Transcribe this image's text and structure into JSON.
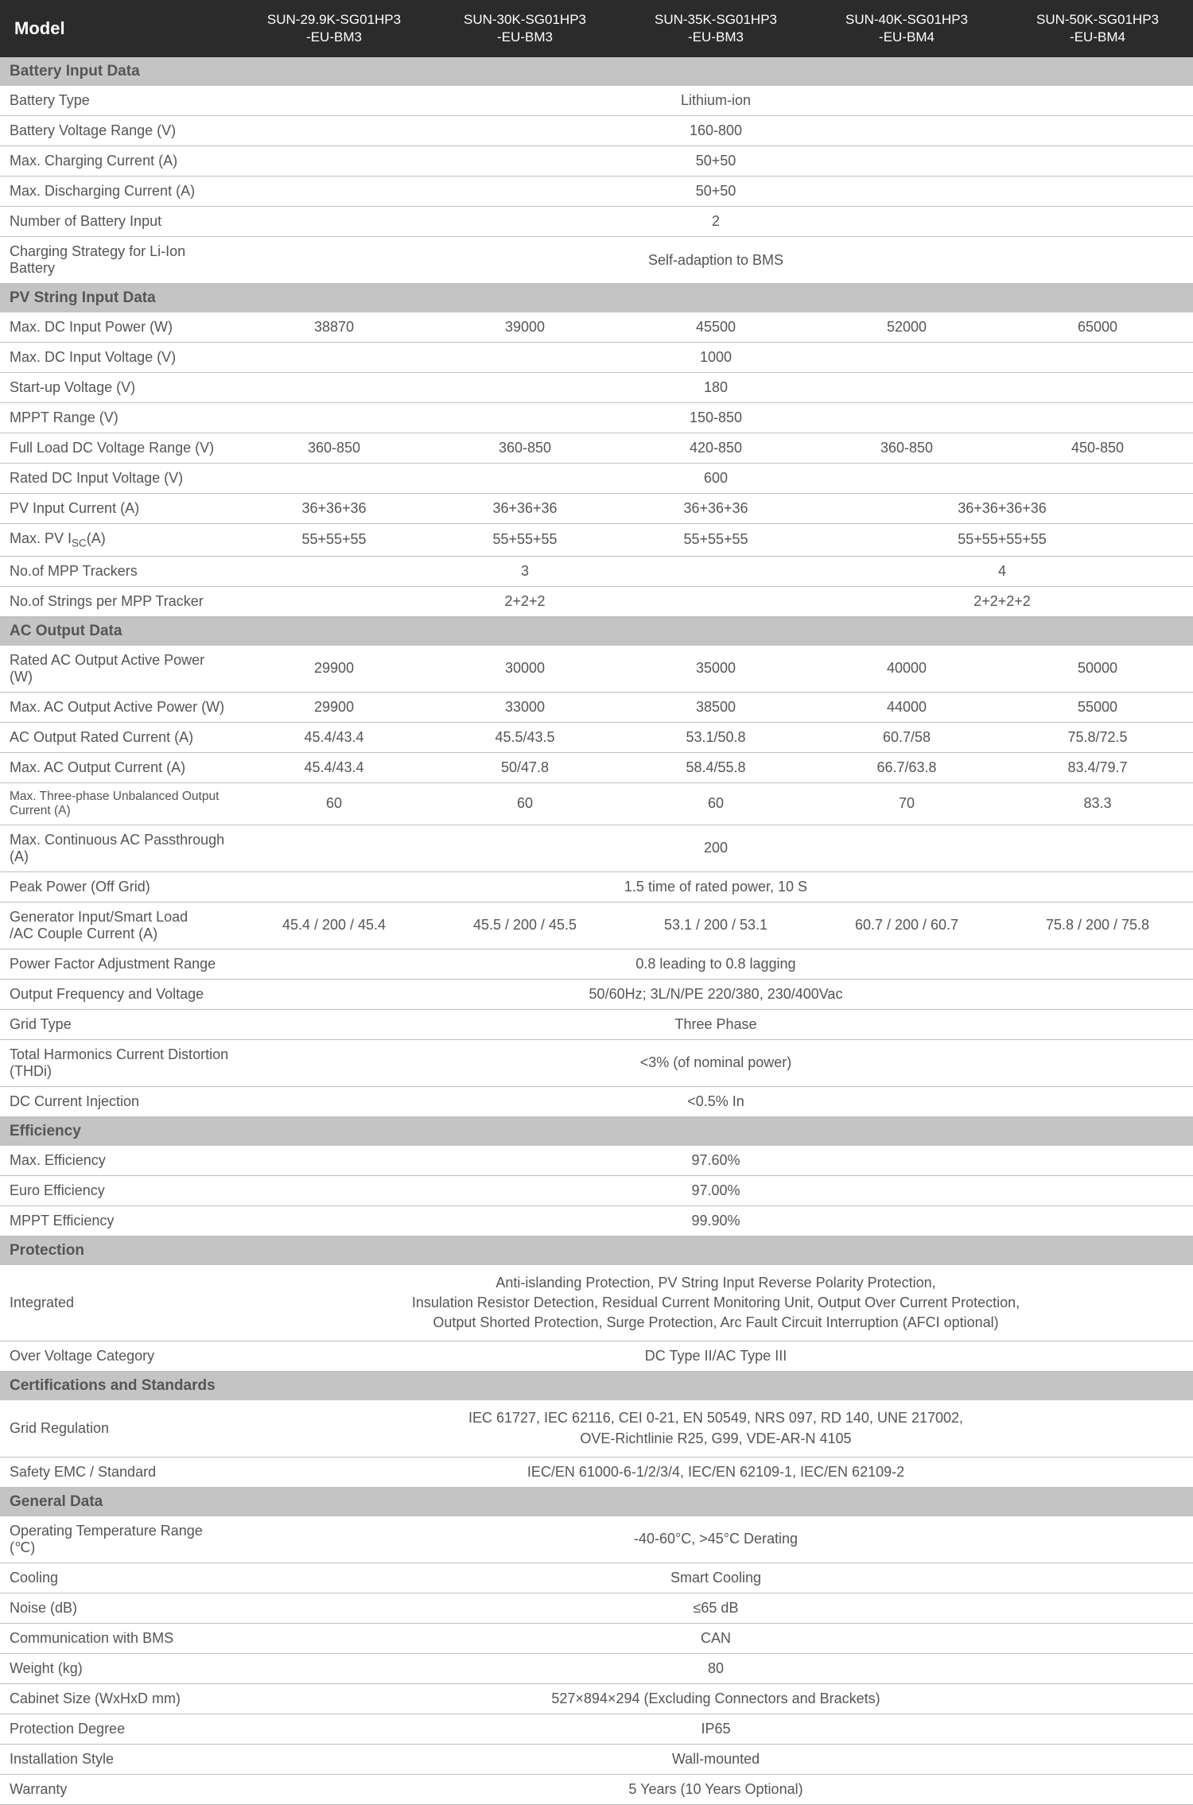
{
  "header": {
    "model_label": "Model",
    "models": [
      {
        "l1": "SUN-29.9K-SG01HP3",
        "l2": "-EU-BM3"
      },
      {
        "l1": "SUN-30K-SG01HP3",
        "l2": "-EU-BM3"
      },
      {
        "l1": "SUN-35K-SG01HP3",
        "l2": "-EU-BM3"
      },
      {
        "l1": "SUN-40K-SG01HP3",
        "l2": "-EU-BM4"
      },
      {
        "l1": "SUN-50K-SG01HP3",
        "l2": "-EU-BM4"
      }
    ]
  },
  "sections": [
    {
      "title": "Battery Input Data",
      "rows": [
        {
          "label": "Battery Type",
          "span": "Lithium-ion"
        },
        {
          "label": "Battery Voltage Range (V)",
          "span": "160-800"
        },
        {
          "label": "Max. Charging Current (A)",
          "span": "50+50"
        },
        {
          "label": "Max. Discharging Current (A)",
          "span": "50+50"
        },
        {
          "label": "Number of Battery Input",
          "span": "2"
        },
        {
          "label": "Charging Strategy for Li-Ion Battery",
          "span": "Self-adaption to BMS"
        }
      ]
    },
    {
      "title": "PV String Input Data",
      "rows": [
        {
          "label": "Max. DC Input Power (W)",
          "vals": [
            "38870",
            "39000",
            "45500",
            "52000",
            "65000"
          ]
        },
        {
          "label": "Max. DC Input Voltage (V)",
          "span": "1000"
        },
        {
          "label": "Start-up Voltage (V)",
          "span": "180"
        },
        {
          "label": "MPPT Range (V)",
          "span": "150-850"
        },
        {
          "label": "Full Load DC Voltage Range (V)",
          "vals": [
            "360-850",
            "360-850",
            "420-850",
            "360-850",
            "450-850"
          ]
        },
        {
          "label": "Rated DC Input Voltage (V)",
          "span": "600"
        },
        {
          "label": "PV Input Current (A)",
          "groups": [
            {
              "v": "36+36+36",
              "c": 1
            },
            {
              "v": "36+36+36",
              "c": 1
            },
            {
              "v": "36+36+36",
              "c": 1
            },
            {
              "v": "36+36+36+36",
              "c": 2
            }
          ]
        },
        {
          "label_html": "Max. PV I<sub>SC</sub>(A)",
          "groups": [
            {
              "v": "55+55+55",
              "c": 1
            },
            {
              "v": "55+55+55",
              "c": 1
            },
            {
              "v": "55+55+55",
              "c": 1
            },
            {
              "v": "55+55+55+55",
              "c": 2
            }
          ]
        },
        {
          "label": "No.of MPP Trackers",
          "groups": [
            {
              "v": "3",
              "c": 3
            },
            {
              "v": "4",
              "c": 2
            }
          ]
        },
        {
          "label": "No.of Strings per MPP Tracker",
          "groups": [
            {
              "v": "2+2+2",
              "c": 3
            },
            {
              "v": "2+2+2+2",
              "c": 2
            }
          ]
        }
      ]
    },
    {
      "title": "AC Output Data",
      "rows": [
        {
          "label": "Rated AC Output Active Power (W)",
          "vals": [
            "29900",
            "30000",
            "35000",
            "40000",
            "50000"
          ]
        },
        {
          "label": "Max. AC Output Active Power (W)",
          "vals": [
            "29900",
            "33000",
            "38500",
            "44000",
            "55000"
          ]
        },
        {
          "label": "AC Output Rated Current (A)",
          "vals": [
            "45.4/43.4",
            "45.5/43.5",
            "53.1/50.8",
            "60.7/58",
            "75.8/72.5"
          ]
        },
        {
          "label": "Max. AC Output Current (A)",
          "vals": [
            "45.4/43.4",
            "50/47.8",
            "58.4/55.8",
            "66.7/63.8",
            "83.4/79.7"
          ]
        },
        {
          "label": "Max. Three-phase Unbalanced Output Current (A)",
          "label_small": true,
          "vals": [
            "60",
            "60",
            "60",
            "70",
            "83.3"
          ]
        },
        {
          "label": "Max. Continuous AC Passthrough (A)",
          "span": "200"
        },
        {
          "label": "Peak Power (Off Grid)",
          "span": "1.5 time of rated power, 10 S"
        },
        {
          "label_html": "Generator Input/Smart Load<br>/AC Couple Current (A)",
          "vals": [
            "45.4 / 200 / 45.4",
            "45.5 / 200 / 45.5",
            "53.1 / 200 / 53.1",
            "60.7 / 200 /  60.7",
            "75.8 / 200 / 75.8"
          ]
        },
        {
          "label": "Power Factor Adjustment Range",
          "span": "0.8 leading to 0.8 lagging"
        },
        {
          "label": "Output Frequency and Voltage",
          "span": "50/60Hz; 3L/N/PE  220/380, 230/400Vac"
        },
        {
          "label": "Grid Type",
          "span": "Three Phase"
        },
        {
          "label": "Total Harmonics Current Distortion (THDi)",
          "span": "<3% (of nominal power)"
        },
        {
          "label": "DC Current Injection",
          "span": "<0.5% In"
        }
      ]
    },
    {
      "title": "Efficiency",
      "rows": [
        {
          "label": "Max. Efficiency",
          "span": "97.60%"
        },
        {
          "label": "Euro Efficiency",
          "span": "97.00%"
        },
        {
          "label": "MPPT Efficiency",
          "span": "99.90%"
        }
      ]
    },
    {
      "title": "Protection",
      "rows": [
        {
          "label": "Integrated",
          "span_html": "Anti-islanding Protection, PV String Input Reverse Polarity Protection,<br>Insulation Resistor Detection, Residual Current Monitoring Unit, Output Over Current Protection,<br>Output Shorted Protection, Surge Protection, Arc Fault Circuit Interruption (AFCI optional)",
          "multiline": true
        },
        {
          "label": "Over Voltage Category",
          "span": "DC Type II/AC Type III"
        }
      ]
    },
    {
      "title": "Certifications and Standards",
      "rows": [
        {
          "label": "Grid Regulation",
          "span_html": "IEC 61727, IEC 62116, CEI 0-21, EN 50549, NRS 097, RD 140, UNE 217002,<br>OVE-Richtlinie R25, G99, VDE-AR-N 4105",
          "multiline": true
        },
        {
          "label": "Safety EMC / Standard",
          "span": "IEC/EN 61000-6-1/2/3/4, IEC/EN 62109-1, IEC/EN 62109-2"
        }
      ]
    },
    {
      "title": "General Data",
      "rows": [
        {
          "label": "Operating Temperature Range (℃)",
          "span": "-40-60°C, >45°C Derating"
        },
        {
          "label": "Cooling",
          "span": "Smart Cooling"
        },
        {
          "label": "Noise (dB)",
          "span": "≤65 dB"
        },
        {
          "label": "Communication with BMS",
          "span": "CAN"
        },
        {
          "label": "Weight (kg)",
          "span": "80"
        },
        {
          "label": "Cabinet Size (WxHxD mm)",
          "span": "527×894×294 (Excluding Connectors and Brackets)"
        },
        {
          "label": "Protection Degree",
          "span": "IP65"
        },
        {
          "label": "Installation Style",
          "span": "Wall-mounted"
        },
        {
          "label": "Warranty",
          "span": "5 Years (10 Years Optional)"
        }
      ]
    }
  ],
  "style": {
    "header_bg": "#2b2b2b",
    "header_fg": "#ffffff",
    "section_bg": "#c4c4c4",
    "text_color": "#555555",
    "border_color": "#c0c0c0",
    "font_family": "Arial, sans-serif"
  }
}
